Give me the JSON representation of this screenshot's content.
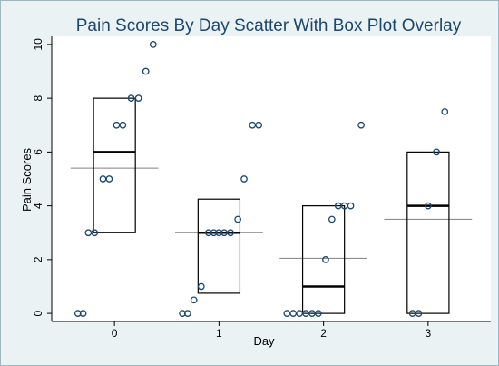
{
  "chart_data": {
    "type": "scatter",
    "title": "Pain Scores By Day Scatter With Box Plot Overlay",
    "xlabel": "Day",
    "ylabel": "Pain Scores",
    "xlim": [
      -0.6,
      3.6
    ],
    "ylim": [
      -0.3,
      10.3
    ],
    "x_ticks": [
      0,
      1,
      2,
      3
    ],
    "y_ticks": [
      0,
      2,
      4,
      6,
      8,
      10
    ],
    "grid": false,
    "legend": "none",
    "points": [
      {
        "x": -0.35,
        "y": 0
      },
      {
        "x": -0.3,
        "y": 0
      },
      {
        "x": -0.25,
        "y": 3
      },
      {
        "x": -0.19,
        "y": 3
      },
      {
        "x": -0.11,
        "y": 5
      },
      {
        "x": -0.05,
        "y": 5
      },
      {
        "x": 0.02,
        "y": 7
      },
      {
        "x": 0.08,
        "y": 7
      },
      {
        "x": 0.16,
        "y": 8
      },
      {
        "x": 0.23,
        "y": 8
      },
      {
        "x": 0.3,
        "y": 9
      },
      {
        "x": 0.37,
        "y": 10
      },
      {
        "x": 0.65,
        "y": 0
      },
      {
        "x": 0.7,
        "y": 0
      },
      {
        "x": 0.76,
        "y": 0.5
      },
      {
        "x": 0.83,
        "y": 1
      },
      {
        "x": 0.9,
        "y": 3
      },
      {
        "x": 0.95,
        "y": 3
      },
      {
        "x": 1.0,
        "y": 3
      },
      {
        "x": 1.05,
        "y": 3
      },
      {
        "x": 1.11,
        "y": 3
      },
      {
        "x": 1.18,
        "y": 3.5
      },
      {
        "x": 1.24,
        "y": 5
      },
      {
        "x": 1.32,
        "y": 7
      },
      {
        "x": 1.38,
        "y": 7
      },
      {
        "x": 1.65,
        "y": 0
      },
      {
        "x": 1.71,
        "y": 0
      },
      {
        "x": 1.77,
        "y": 0
      },
      {
        "x": 1.83,
        "y": 0
      },
      {
        "x": 1.89,
        "y": 0
      },
      {
        "x": 1.95,
        "y": 0
      },
      {
        "x": 2.02,
        "y": 2
      },
      {
        "x": 2.08,
        "y": 3.5
      },
      {
        "x": 2.14,
        "y": 4
      },
      {
        "x": 2.2,
        "y": 4
      },
      {
        "x": 2.26,
        "y": 4
      },
      {
        "x": 2.36,
        "y": 7
      },
      {
        "x": 2.85,
        "y": 0
      },
      {
        "x": 2.91,
        "y": 0
      },
      {
        "x": 3.0,
        "y": 4
      },
      {
        "x": 3.08,
        "y": 6
      },
      {
        "x": 3.16,
        "y": 7.5
      }
    ],
    "boxes": [
      {
        "day": 0,
        "q1": 3,
        "median": 6,
        "q3": 8,
        "mean": 5.4
      },
      {
        "day": 1,
        "q1": 0.75,
        "median": 3,
        "q3": 4.25,
        "mean": 3
      },
      {
        "day": 2,
        "q1": 0,
        "median": 1,
        "q3": 4,
        "mean": 2.05
      },
      {
        "day": 3,
        "q1": 0,
        "median": 4,
        "q3": 6,
        "mean": 3.5
      }
    ],
    "colors": {
      "background": "#eaf2f3",
      "plot_area": "#ffffff",
      "marker": "#1a476f",
      "title": "#1a476f",
      "mean_line": "#808080"
    }
  }
}
